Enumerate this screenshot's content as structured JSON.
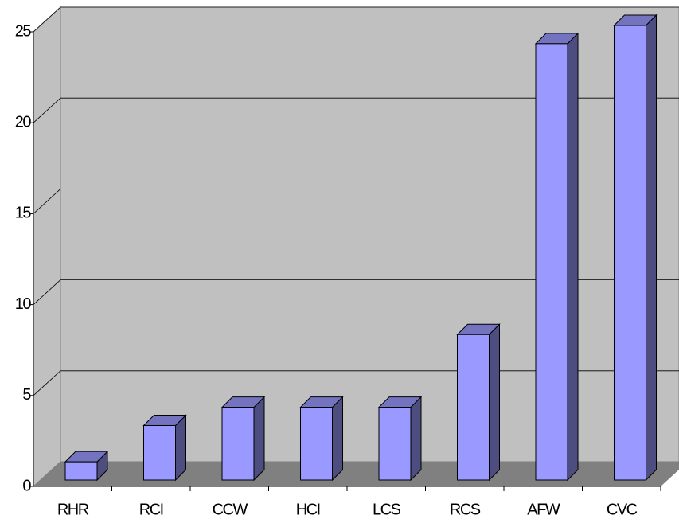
{
  "chart_data": {
    "type": "bar",
    "categories": [
      "RHR",
      "RCI",
      "CCW",
      "HCI",
      "LCS",
      "RCS",
      "AFW",
      "CVC"
    ],
    "values": [
      1,
      3,
      4,
      4,
      4,
      8,
      24,
      25
    ],
    "color": "#9999ff",
    "ylim": [
      0,
      25
    ],
    "yticks": [
      0,
      5,
      10,
      15,
      20,
      25
    ],
    "grid": true
  }
}
